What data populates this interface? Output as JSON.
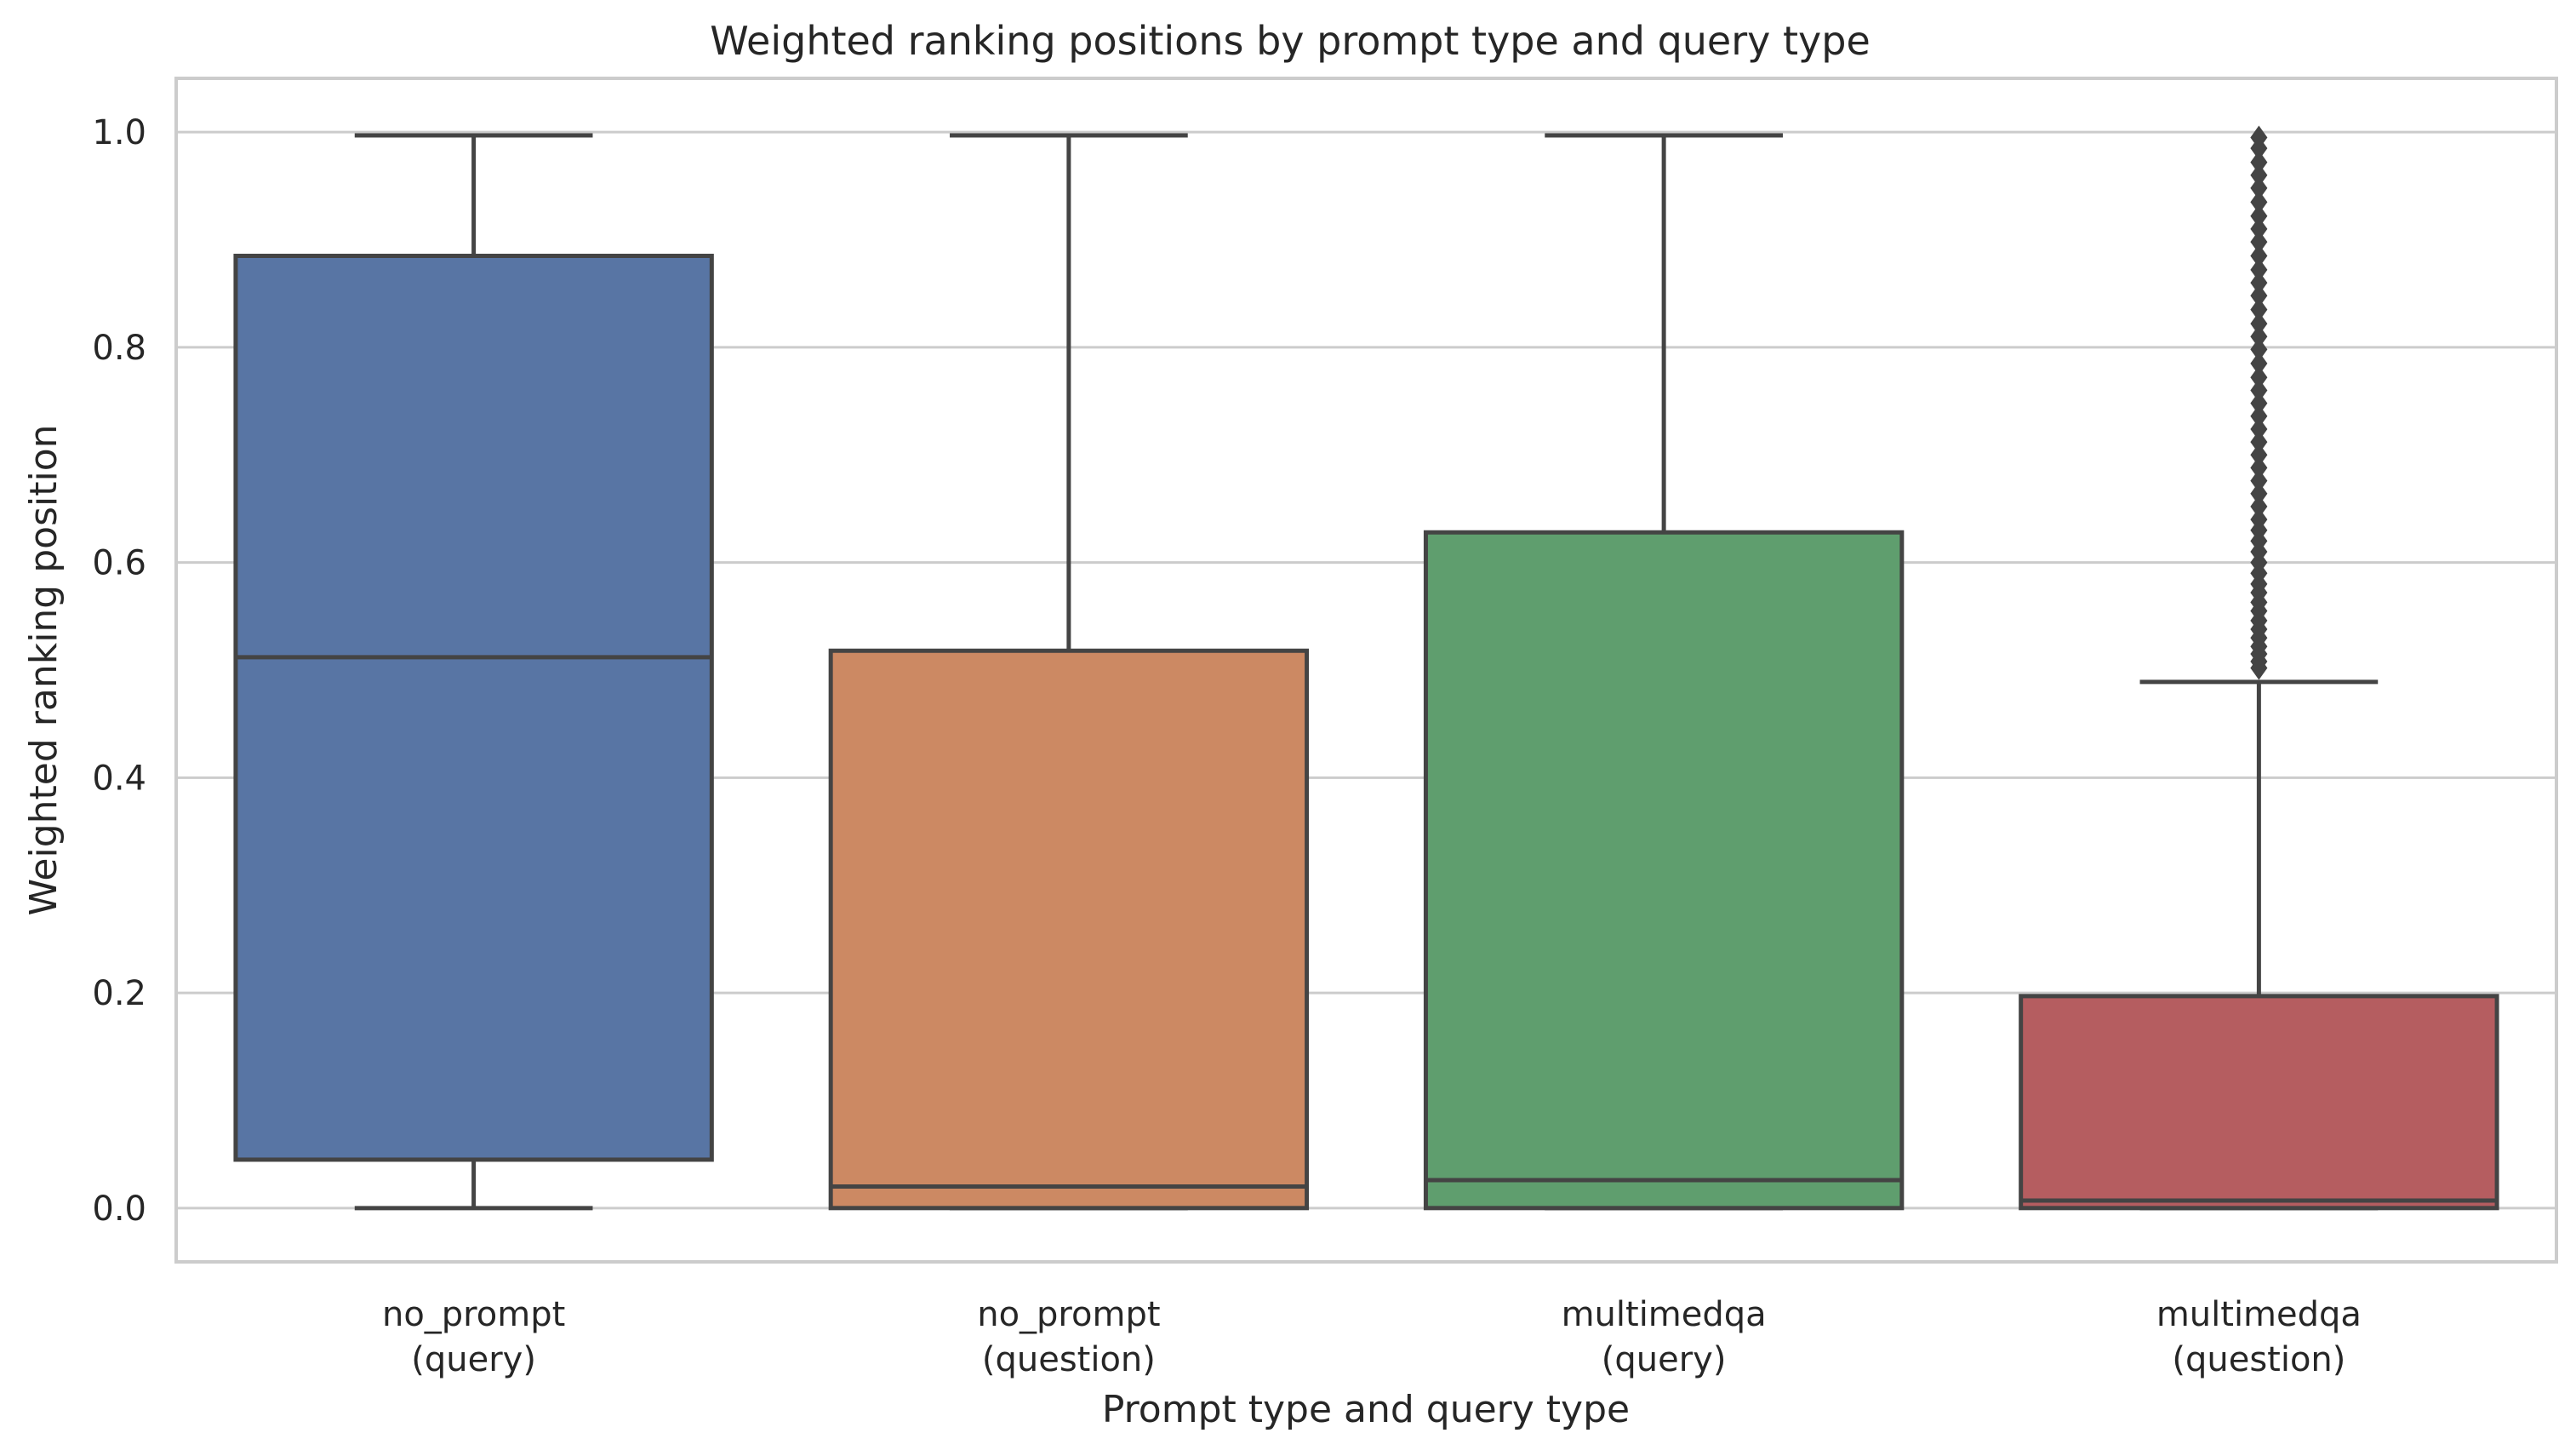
{
  "chart_data": {
    "type": "box",
    "title": "Weighted ranking positions by prompt type and query type",
    "xlabel": "Prompt type and query type",
    "ylabel": "Weighted ranking position",
    "ylim": [
      -0.05,
      1.05
    ],
    "yticks": [
      "0.0",
      "0.2",
      "0.4",
      "0.6",
      "0.8",
      "1.0"
    ],
    "grid": "horizontal",
    "categories": [
      {
        "line1": "no_prompt",
        "line2": "(query)"
      },
      {
        "line1": "no_prompt",
        "line2": "(question)"
      },
      {
        "line1": "multimedqa",
        "line2": "(query)"
      },
      {
        "line1": "multimedqa",
        "line2": "(question)"
      }
    ],
    "boxes": [
      {
        "whisker_low": 0.0,
        "q1": 0.045,
        "median": 0.512,
        "q3": 0.885,
        "whisker_high": 0.997,
        "color": "#5875a4",
        "outliers": []
      },
      {
        "whisker_low": 0.0,
        "q1": 0.0,
        "median": 0.02,
        "q3": 0.518,
        "whisker_high": 0.997,
        "color": "#cc8963",
        "outliers": []
      },
      {
        "whisker_low": 0.0,
        "q1": 0.0,
        "median": 0.026,
        "q3": 0.628,
        "whisker_high": 0.997,
        "color": "#5f9e6e",
        "outliers": []
      },
      {
        "whisker_low": 0.0,
        "q1": 0.0,
        "median": 0.007,
        "q3": 0.197,
        "whisker_high": 0.489,
        "color": "#b55d60",
        "outliers": [
          0.502,
          0.508,
          0.515,
          0.522,
          0.53,
          0.538,
          0.546,
          0.555,
          0.563,
          0.572,
          0.58,
          0.59,
          0.6,
          0.61,
          0.62,
          0.63,
          0.64,
          0.652,
          0.664,
          0.676,
          0.688,
          0.7,
          0.712,
          0.724,
          0.736,
          0.748,
          0.76,
          0.772,
          0.785,
          0.798,
          0.81,
          0.822,
          0.835,
          0.848,
          0.86,
          0.872,
          0.885,
          0.898,
          0.91,
          0.922,
          0.935,
          0.948,
          0.96,
          0.972,
          0.985,
          0.995
        ]
      }
    ],
    "colors": {
      "line": "#444444",
      "grid": "#cccccc",
      "frame": "#cccccc"
    }
  }
}
